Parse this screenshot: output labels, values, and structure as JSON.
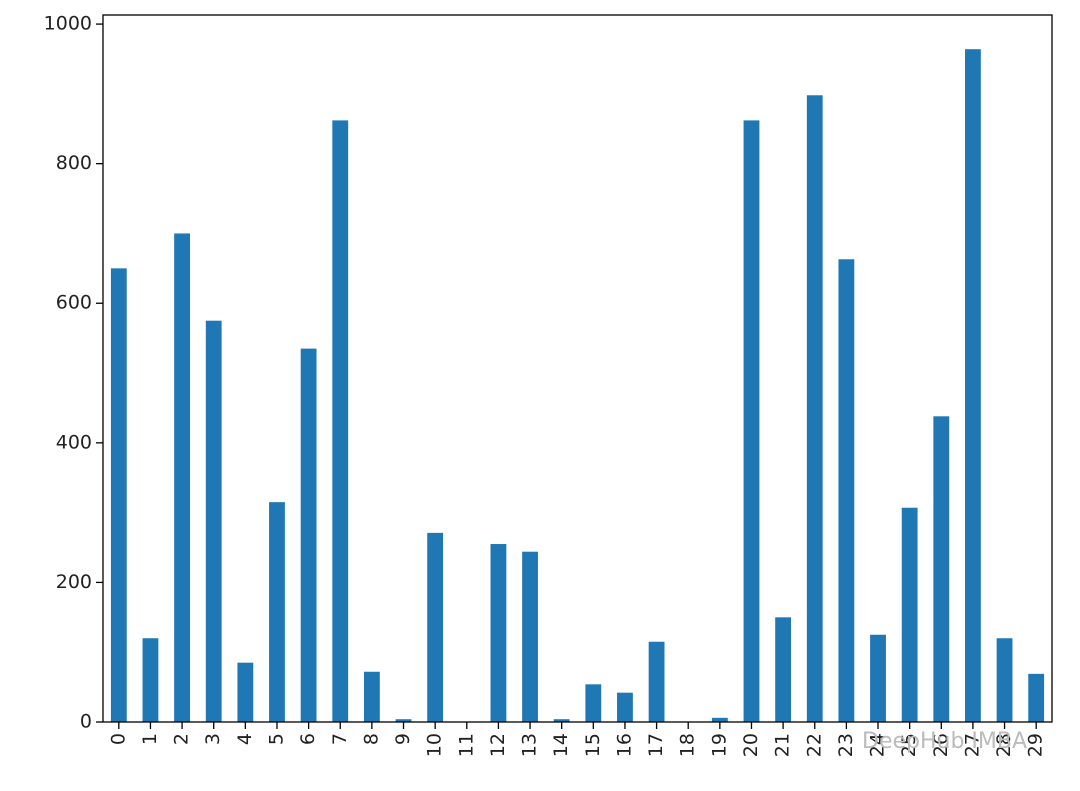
{
  "chart_data": {
    "type": "bar",
    "categories": [
      "0",
      "1",
      "2",
      "3",
      "4",
      "5",
      "6",
      "7",
      "8",
      "9",
      "10",
      "11",
      "12",
      "13",
      "14",
      "15",
      "16",
      "17",
      "18",
      "19",
      "20",
      "21",
      "22",
      "23",
      "24",
      "25",
      "26",
      "27",
      "28",
      "29"
    ],
    "values": [
      650,
      120,
      700,
      575,
      85,
      315,
      535,
      862,
      72,
      4,
      271,
      0,
      255,
      244,
      4,
      54,
      42,
      115,
      0,
      6,
      862,
      150,
      898,
      663,
      125,
      307,
      438,
      964,
      120,
      69
    ],
    "color": "#1f77b4",
    "ylim": [
      0,
      1013
    ],
    "yticks": [
      0,
      200,
      400,
      600,
      800,
      1000
    ],
    "watermark": "DeepHub IMBA"
  }
}
